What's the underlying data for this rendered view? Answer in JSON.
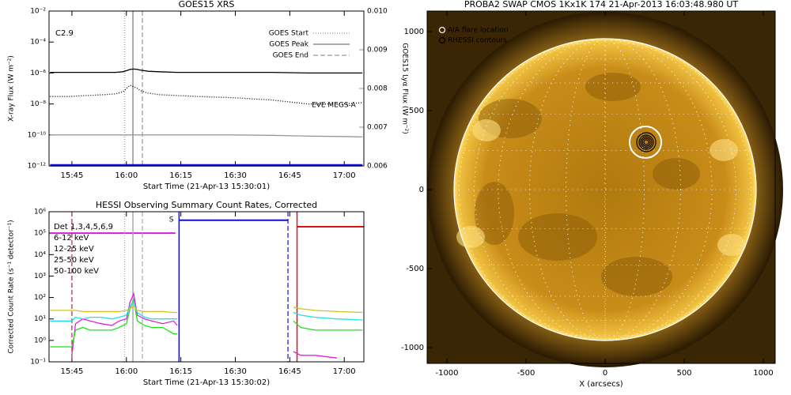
{
  "chart_data": [
    {
      "type": "line",
      "title": "GOES15 XRS",
      "xlabel": "Start Time (21-Apr-13 15:30:01)",
      "ylabel": "X-ray Flux (W m⁻²)",
      "y2label": "GOES15 Lyα Flux (W m⁻²)",
      "annotation": "C2.9",
      "eve_label": "EVE MEGS-A",
      "ylog": true,
      "legend": "upper right",
      "xlim": [
        938.7,
        1025.4
      ],
      "xticks": [
        {
          "value": 945,
          "label": "15:45"
        },
        {
          "value": 960,
          "label": "16:00"
        },
        {
          "value": 975,
          "label": "16:15"
        },
        {
          "value": 990,
          "label": "16:30"
        },
        {
          "value": 1005,
          "label": "16:45"
        },
        {
          "value": 1020,
          "label": "17:00"
        }
      ],
      "ylim": [
        1e-12,
        0.01
      ],
      "yticks": [
        {
          "value": 1e-12,
          "label": "10⁻¹²"
        },
        {
          "value": 1e-10,
          "label": "10⁻¹⁰"
        },
        {
          "value": 1e-08,
          "label": "10⁻⁸"
        },
        {
          "value": 1e-06,
          "label": "10⁻⁶"
        },
        {
          "value": 0.0001,
          "label": "10⁻⁴"
        },
        {
          "value": 0.01,
          "label": "10⁻²"
        }
      ],
      "y2lim": [
        0.006,
        0.01
      ],
      "y2ticks": [
        0.006,
        0.007,
        0.008,
        0.009,
        {
          "value": 0.01,
          "label": "0.010"
        }
      ],
      "x": [
        939,
        944,
        949,
        954,
        957,
        959,
        960,
        961,
        962,
        963,
        964,
        966,
        969,
        974,
        980,
        990,
        1000,
        1010,
        1020,
        1025
      ],
      "series": [
        {
          "color": "#000000",
          "style": "solid",
          "values": [
            1.1e-06,
            1.1e-06,
            1.1e-06,
            1.1e-06,
            1.1e-06,
            1.2e-06,
            1.4e-06,
            1.7e-06,
            1.8e-06,
            1.7e-06,
            1.5e-06,
            1.3e-06,
            1.2e-06,
            1.1e-06,
            1.1e-06,
            1.1e-06,
            1.1e-06,
            1e-06,
            1e-06,
            1e-06
          ]
        },
        {
          "color": "#000000",
          "style": "dotted",
          "values": [
            3e-08,
            3e-08,
            3.5e-08,
            4e-08,
            4.5e-08,
            6e-08,
            1e-07,
            1.6e-07,
            1.3e-07,
            1e-07,
            7e-08,
            5e-08,
            4e-08,
            3.5e-08,
            3e-08,
            2.5e-08,
            1.8e-08,
            1e-08,
            1e-08,
            1.2e-08
          ]
        },
        {
          "color": "#999999",
          "style": "solid",
          "axis": "y2",
          "values": [
            0.0068,
            0.0068,
            0.0068,
            0.0068,
            0.0068,
            0.0068,
            0.0068,
            0.0068,
            0.0068,
            0.0068,
            0.0068,
            0.0068,
            0.0068,
            0.0068,
            0.0068,
            0.0068,
            0.00679,
            0.00677,
            0.00676,
            0.00675
          ]
        },
        {
          "color": "#1010d0",
          "style": "thick",
          "values": [
            1.1e-12,
            1.1e-12,
            1.1e-12,
            1.1e-12,
            1.1e-12,
            1.1e-12,
            1.1e-12,
            1.1e-12,
            1.1e-12,
            1.1e-12,
            1.1e-12,
            1.1e-12,
            1.1e-12,
            1.1e-12,
            1.1e-12,
            1.1e-12,
            1.1e-12,
            1.1e-12,
            1.1e-12,
            1.1e-12
          ]
        }
      ],
      "markers": [
        {
          "name": "GOES Start",
          "x": 959.5,
          "color": "#aaaaaa",
          "style": "dotted"
        },
        {
          "name": "GOES Peak",
          "x": 961.8,
          "color": "#aaaaaa",
          "style": "solid"
        },
        {
          "name": "GOES End",
          "x": 964.4,
          "color": "#aaaaaa",
          "style": "dashed"
        }
      ]
    },
    {
      "type": "line",
      "title": "HESSI Observing Summary Count Rates, Corrected",
      "xlabel": "Start Time (21-Apr-13 15:30:02)",
      "ylabel": "Corrected Count Rate (s⁻¹ detector⁻¹)",
      "detectors": "Det 1,3,4,5,6,9",
      "ylog": true,
      "legend": "upper left",
      "xlim": [
        938.7,
        1025.4
      ],
      "xticks": [
        {
          "value": 945,
          "label": "15:45"
        },
        {
          "value": 960,
          "label": "16:00"
        },
        {
          "value": 975,
          "label": "16:15"
        },
        {
          "value": 990,
          "label": "16:30"
        },
        {
          "value": 1005,
          "label": "16:45"
        },
        {
          "value": 1020,
          "label": "17:00"
        }
      ],
      "ylim": [
        0.1,
        1000000.0
      ],
      "yticks": [
        {
          "value": 0.1,
          "label": "10⁻¹"
        },
        {
          "value": 1,
          "label": "10⁰"
        },
        {
          "value": 10,
          "label": "10¹"
        },
        {
          "value": 100,
          "label": "10²"
        },
        {
          "value": 1000,
          "label": "10³"
        },
        {
          "value": 10000,
          "label": "10⁴"
        },
        {
          "value": 100000,
          "label": "10⁵"
        },
        {
          "value": 1000000,
          "label": "10⁶"
        }
      ],
      "x": [
        939,
        942,
        944,
        945,
        946,
        948,
        950,
        953,
        956,
        958,
        960,
        961,
        962,
        963,
        965,
        967,
        970,
        973,
        974,
        990,
        1006,
        1008,
        1012,
        1018,
        1025
      ],
      "series": [
        {
          "name": "6-12 keV",
          "color": "#e020e0",
          "style": "solid",
          "values": [
            null,
            null,
            null,
            0.2,
            6,
            10,
            8,
            6,
            5,
            8,
            10,
            60,
            150,
            15,
            10,
            8,
            6,
            8,
            5,
            null,
            0.3,
            0.2,
            0.2,
            0.15,
            null
          ]
        },
        {
          "name": "12-25 keV",
          "color": "#20e020",
          "style": "solid",
          "values": [
            0.5,
            0.5,
            0.5,
            0.5,
            3,
            4,
            3,
            3,
            3,
            4,
            6,
            30,
            80,
            8,
            5,
            4,
            4,
            2,
            2,
            null,
            8,
            4,
            3,
            3,
            3
          ]
        },
        {
          "name": "25-50 keV",
          "color": "#20e0e8",
          "style": "solid",
          "values": [
            8,
            8,
            8,
            8,
            12,
            10,
            12,
            12,
            10,
            12,
            15,
            40,
            60,
            20,
            12,
            10,
            10,
            10,
            10,
            null,
            20,
            15,
            12,
            10,
            9
          ]
        },
        {
          "name": "50-100 keV",
          "color": "#d0c020",
          "style": "solid",
          "values": [
            25,
            25,
            25,
            25,
            25,
            22,
            22,
            22,
            22,
            22,
            25,
            30,
            40,
            25,
            22,
            22,
            22,
            20,
            20,
            null,
            35,
            30,
            25,
            22,
            20
          ]
        }
      ],
      "flags": [
        {
          "color": "#d020d0",
          "start": 938.7,
          "end": 973.5,
          "level": 100000
        },
        {
          "color": "#1010d0",
          "start": 974.5,
          "end": 1004.5,
          "level": 400000
        },
        {
          "color": "#e01010",
          "start": 1007,
          "end": 1025.4,
          "level": 200000
        }
      ],
      "flag_label": {
        "text": "S",
        "x": 973
      },
      "vlines": [
        {
          "x": 945,
          "color": "#a03040",
          "style": "dashed"
        },
        {
          "x": 959.5,
          "color": "#aaaaaa",
          "style": "dotted"
        },
        {
          "x": 961.8,
          "color": "#aaaaaa",
          "style": "solid"
        },
        {
          "x": 964.4,
          "color": "#aaaaaa",
          "style": "dashed"
        },
        {
          "x": 974.5,
          "color": "#1010d0",
          "style": "solid"
        },
        {
          "x": 1004.5,
          "color": "#1010d0",
          "style": "dashed"
        },
        {
          "x": 1007,
          "color": "#e01010",
          "style": "solid"
        }
      ]
    },
    {
      "type": "image",
      "title": "PROBA2 SWAP CMOS 1Kx1K 174 21-Apr-2013 16:03:48.980 UT",
      "xlabel": "X (arcsecs)",
      "xlim": [
        -1125,
        1075
      ],
      "ylim": [
        -1100,
        1130
      ],
      "xticks": [
        -1000,
        -500,
        0,
        500,
        1000
      ],
      "yticks": [
        -1000,
        -500,
        0,
        500,
        1000
      ],
      "legend": [
        "AIA flare location",
        "RHESSI contours"
      ],
      "flare": {
        "x": 255,
        "y": 300
      }
    }
  ]
}
